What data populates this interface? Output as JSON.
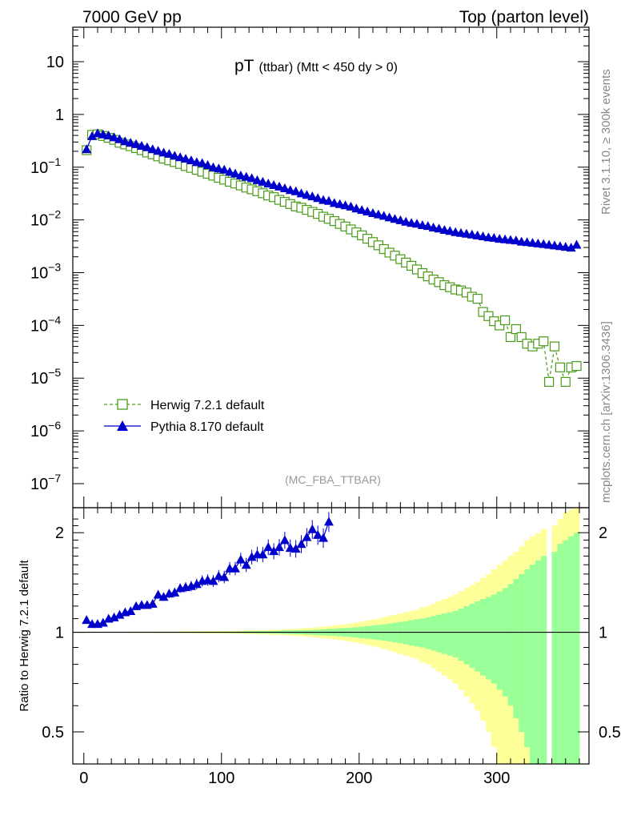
{
  "header": {
    "left": "7000 GeV pp",
    "right": "Top (parton level)"
  },
  "side_labels": {
    "rivet": "Rivet 3.1.10, ≥ 300k events",
    "mcplots": "mcplots.cern.ch [arXiv:1306.3436]"
  },
  "chart_data": [
    {
      "type": "line",
      "panel": "main",
      "title_main": "pT",
      "title_sub": "(ttbar) (Mtt < 450 dy > 0)",
      "analysis_label": "(MC_FBA_TTBAR)",
      "scale": "log",
      "xlim": [
        -8,
        367
      ],
      "ylim": [
        3.5e-08,
        45
      ],
      "y_ticks": [
        {
          "value": 1e-07,
          "label": "10",
          "exp": "−7"
        },
        {
          "value": 1e-06,
          "label": "10",
          "exp": "−6"
        },
        {
          "value": 1e-05,
          "label": "10",
          "exp": "−5"
        },
        {
          "value": 0.0001,
          "label": "10",
          "exp": "−4"
        },
        {
          "value": 0.001,
          "label": "10",
          "exp": "−3"
        },
        {
          "value": 0.01,
          "label": "10",
          "exp": "−2"
        },
        {
          "value": 0.1,
          "label": "10",
          "exp": "−1"
        },
        {
          "value": 1,
          "label": "1",
          "exp": ""
        },
        {
          "value": 10,
          "label": "10",
          "exp": ""
        }
      ],
      "legend": [
        {
          "label": "Herwig 7.2.1 default",
          "color": "#4a9a1a",
          "marker": "open-square",
          "dash": true
        },
        {
          "label": "Pythia 8.170 default",
          "color": "#0000cc",
          "marker": "filled-triangle",
          "dash": false
        }
      ],
      "series": [
        {
          "name": "Herwig 7.2.1 default",
          "x": [
            2,
            6,
            10,
            14,
            18,
            22,
            26,
            30,
            34,
            38,
            42,
            46,
            50,
            54,
            58,
            62,
            66,
            70,
            74,
            78,
            82,
            86,
            90,
            94,
            98,
            102,
            106,
            110,
            114,
            118,
            122,
            126,
            130,
            134,
            138,
            142,
            146,
            150,
            154,
            158,
            162,
            166,
            170,
            174,
            178,
            182,
            186,
            190,
            194,
            198,
            202,
            206,
            210,
            214,
            218,
            222,
            226,
            230,
            234,
            238,
            242,
            246,
            250,
            254,
            258,
            262,
            266,
            270,
            274,
            278,
            282,
            286,
            290,
            294,
            298,
            302,
            306,
            310,
            314,
            318,
            322,
            326,
            330,
            334,
            338,
            342,
            346,
            350,
            354,
            358
          ],
          "values": [
            0.21,
            0.41,
            0.42,
            0.39,
            0.36,
            0.33,
            0.29,
            0.27,
            0.25,
            0.23,
            0.21,
            0.19,
            0.175,
            0.16,
            0.145,
            0.135,
            0.125,
            0.115,
            0.105,
            0.097,
            0.089,
            0.082,
            0.075,
            0.069,
            0.063,
            0.058,
            0.053,
            0.049,
            0.045,
            0.041,
            0.038,
            0.035,
            0.032,
            0.029,
            0.027,
            0.024,
            0.022,
            0.02,
            0.018,
            0.017,
            0.0155,
            0.0142,
            0.013,
            0.0115,
            0.0105,
            0.0095,
            0.0084,
            0.0075,
            0.0066,
            0.0058,
            0.0051,
            0.0044,
            0.0038,
            0.0033,
            0.0028,
            0.0024,
            0.0021,
            0.0018,
            0.00155,
            0.00135,
            0.00115,
            0.00098,
            0.00085,
            0.00074,
            0.00066,
            0.00058,
            0.00053,
            0.00048,
            0.00046,
            0.00042,
            0.00035,
            0.00032,
            0.00018,
            0.00015,
            0.00012,
            0.0001,
            0.000125,
            6e-05,
            8.5e-05,
            6e-05,
            4.5e-05,
            4e-05,
            4.5e-05,
            5e-05,
            8.5e-06,
            4e-05,
            1.6e-05,
            8.5e-06,
            1.6e-05,
            1.7e-05
          ]
        },
        {
          "name": "Pythia 8.170 default",
          "x": [
            2,
            6,
            10,
            14,
            18,
            22,
            26,
            30,
            34,
            38,
            42,
            46,
            50,
            54,
            58,
            62,
            66,
            70,
            74,
            78,
            82,
            86,
            90,
            94,
            98,
            102,
            106,
            110,
            114,
            118,
            122,
            126,
            130,
            134,
            138,
            142,
            146,
            150,
            154,
            158,
            162,
            166,
            170,
            174,
            178,
            182,
            186,
            190,
            194,
            198,
            202,
            206,
            210,
            214,
            218,
            222,
            226,
            230,
            234,
            238,
            242,
            246,
            250,
            254,
            258,
            262,
            266,
            270,
            274,
            278,
            282,
            286,
            290,
            294,
            298,
            302,
            306,
            310,
            314,
            318,
            322,
            326,
            330,
            334,
            338,
            342,
            346,
            350,
            354,
            358
          ],
          "values": [
            0.22,
            0.39,
            0.44,
            0.42,
            0.4,
            0.37,
            0.34,
            0.31,
            0.29,
            0.275,
            0.255,
            0.24,
            0.22,
            0.205,
            0.19,
            0.18,
            0.165,
            0.155,
            0.145,
            0.135,
            0.125,
            0.12,
            0.11,
            0.1,
            0.095,
            0.09,
            0.082,
            0.076,
            0.07,
            0.066,
            0.062,
            0.057,
            0.053,
            0.049,
            0.046,
            0.043,
            0.04,
            0.037,
            0.035,
            0.032,
            0.03,
            0.028,
            0.026,
            0.024,
            0.023,
            0.021,
            0.02,
            0.019,
            0.018,
            0.0165,
            0.0155,
            0.0145,
            0.0135,
            0.0128,
            0.012,
            0.0112,
            0.0105,
            0.0099,
            0.0093,
            0.0088,
            0.0085,
            0.008,
            0.0077,
            0.0072,
            0.0069,
            0.0065,
            0.0062,
            0.0059,
            0.0057,
            0.0055,
            0.0053,
            0.0051,
            0.0049,
            0.0047,
            0.0046,
            0.0044,
            0.0043,
            0.0042,
            0.0041,
            0.0039,
            0.0038,
            0.0037,
            0.0036,
            0.0035,
            0.0034,
            0.0033,
            0.0032,
            0.0031,
            0.003,
            0.0034
          ]
        }
      ]
    },
    {
      "type": "line",
      "panel": "ratio",
      "ylabel": "Ratio to Herwig 7.2.1 default",
      "scale": "log",
      "xlim": [
        -8,
        367
      ],
      "ylim": [
        0.4,
        2.38
      ],
      "y_ticks": [
        0.5,
        1,
        2
      ],
      "x_ticks": [
        0,
        100,
        200,
        300
      ],
      "series": [
        {
          "name": "Pythia 8.170 default",
          "x": [
            2,
            6,
            10,
            14,
            18,
            22,
            26,
            30,
            34,
            38,
            42,
            46,
            50,
            54,
            58,
            62,
            66,
            70,
            74,
            78,
            82,
            86,
            90,
            94,
            98,
            102,
            106,
            110,
            114,
            118,
            122,
            126,
            130,
            134,
            138,
            142,
            146,
            150,
            154,
            158,
            162,
            166,
            170,
            174,
            178
          ],
          "values": [
            1.09,
            1.06,
            1.06,
            1.07,
            1.1,
            1.11,
            1.13,
            1.15,
            1.16,
            1.2,
            1.21,
            1.21,
            1.22,
            1.3,
            1.28,
            1.31,
            1.32,
            1.36,
            1.37,
            1.38,
            1.4,
            1.43,
            1.44,
            1.43,
            1.48,
            1.47,
            1.56,
            1.56,
            1.66,
            1.6,
            1.69,
            1.72,
            1.72,
            1.81,
            1.76,
            1.81,
            1.9,
            1.8,
            1.79,
            1.85,
            1.94,
            2.05,
            1.97,
            1.93,
            2.16
          ]
        }
      ],
      "bands": {
        "x_edges": [
          0,
          4,
          8,
          12,
          16,
          20,
          24,
          28,
          32,
          36,
          40,
          44,
          48,
          52,
          56,
          60,
          64,
          68,
          72,
          76,
          80,
          84,
          88,
          92,
          96,
          100,
          104,
          108,
          112,
          116,
          120,
          124,
          128,
          132,
          136,
          140,
          144,
          148,
          152,
          156,
          160,
          164,
          168,
          172,
          176,
          180,
          184,
          188,
          192,
          196,
          200,
          204,
          208,
          212,
          216,
          220,
          224,
          228,
          232,
          236,
          240,
          244,
          248,
          252,
          256,
          260,
          264,
          268,
          272,
          276,
          280,
          284,
          288,
          292,
          296,
          300,
          304,
          308,
          312,
          316,
          320,
          324,
          328,
          332,
          336,
          340,
          344,
          348,
          352,
          356,
          360
        ],
        "yellow_half": [
          0.004,
          0.003,
          0.003,
          0.003,
          0.003,
          0.003,
          0.003,
          0.003,
          0.004,
          0.004,
          0.004,
          0.004,
          0.004,
          0.005,
          0.005,
          0.005,
          0.005,
          0.006,
          0.006,
          0.006,
          0.007,
          0.007,
          0.007,
          0.008,
          0.008,
          0.009,
          0.009,
          0.01,
          0.011,
          0.012,
          0.013,
          0.014,
          0.015,
          0.016,
          0.018,
          0.019,
          0.021,
          0.023,
          0.025,
          0.027,
          0.03,
          0.033,
          0.036,
          0.04,
          0.044,
          0.048,
          0.053,
          0.058,
          0.064,
          0.07,
          0.077,
          0.085,
          0.093,
          0.1,
          0.11,
          0.12,
          0.13,
          0.14,
          0.15,
          0.16,
          0.17,
          0.19,
          0.2,
          0.22,
          0.24,
          0.26,
          0.28,
          0.3,
          0.33,
          0.36,
          0.39,
          0.42,
          0.46,
          0.5,
          0.55,
          0.6,
          0.65,
          0.7,
          0.75,
          0.82,
          0.9,
          0.95,
          1.0,
          1.05,
          0.0,
          1.1,
          1.2,
          1.3,
          1.35,
          1.4
        ],
        "green_half": [
          0.002,
          0.002,
          0.002,
          0.002,
          0.002,
          0.002,
          0.002,
          0.002,
          0.002,
          0.002,
          0.002,
          0.002,
          0.002,
          0.003,
          0.003,
          0.003,
          0.003,
          0.003,
          0.003,
          0.003,
          0.004,
          0.004,
          0.004,
          0.004,
          0.004,
          0.005,
          0.005,
          0.005,
          0.006,
          0.006,
          0.007,
          0.007,
          0.008,
          0.008,
          0.009,
          0.01,
          0.011,
          0.012,
          0.013,
          0.014,
          0.016,
          0.017,
          0.019,
          0.021,
          0.023,
          0.025,
          0.028,
          0.03,
          0.033,
          0.036,
          0.04,
          0.044,
          0.048,
          0.052,
          0.057,
          0.062,
          0.068,
          0.074,
          0.08,
          0.088,
          0.095,
          0.1,
          0.11,
          0.12,
          0.13,
          0.14,
          0.15,
          0.16,
          0.18,
          0.2,
          0.22,
          0.24,
          0.26,
          0.28,
          0.3,
          0.33,
          0.36,
          0.4,
          0.45,
          0.5,
          0.55,
          0.6,
          0.65,
          0.7,
          0.0,
          0.75,
          0.85,
          0.9,
          0.95,
          1.0
        ]
      }
    }
  ]
}
